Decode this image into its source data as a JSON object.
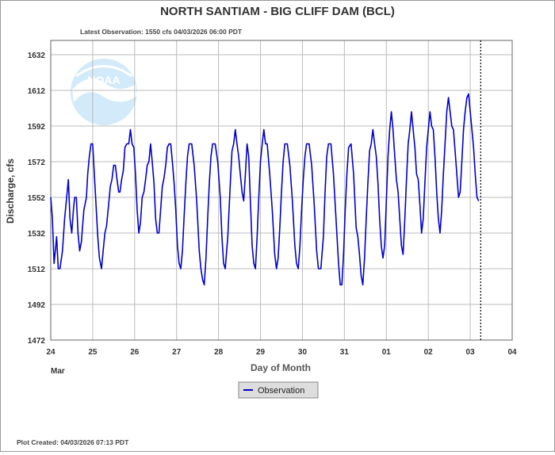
{
  "header": {
    "title": "NORTH SANTIAM - BIG CLIFF DAM  (BCL)",
    "latest_observation": "Latest Observation: 1550 cfs 04/03/2026 06:00 PDT"
  },
  "footer": {
    "plot_created": "Plot Created: 04/03/2026 07:13 PDT"
  },
  "logo": {
    "text": "NOAA"
  },
  "colors": {
    "series": "#0000cc",
    "grid": "#bbbbbb",
    "axis_text": "#333333",
    "legend_bg": "#dddddd"
  },
  "chart_data": {
    "type": "line",
    "title": "NORTH SANTIAM - BIG CLIFF DAM  (BCL)",
    "xlabel": "Day of Month",
    "ylabel": "Discharge, cfs",
    "x_month_label": "Mar",
    "x_tick_labels": [
      "24",
      "25",
      "26",
      "27",
      "28",
      "29",
      "30",
      "31",
      "01",
      "02",
      "03",
      "04"
    ],
    "y_ticks": [
      1472,
      1492,
      1512,
      1532,
      1552,
      1572,
      1592,
      1612,
      1632
    ],
    "xlim_days": [
      0,
      11
    ],
    "ylim": [
      1472,
      1640
    ],
    "grid": true,
    "legend_position": "bottom-center",
    "latest_marker_day": 10.25,
    "series": [
      {
        "name": "Observation",
        "points": [
          [
            0.0,
            1552
          ],
          [
            0.04,
            1540
          ],
          [
            0.08,
            1515
          ],
          [
            0.11,
            1522
          ],
          [
            0.14,
            1530
          ],
          [
            0.18,
            1512
          ],
          [
            0.22,
            1512
          ],
          [
            0.28,
            1522
          ],
          [
            0.33,
            1540
          ],
          [
            0.38,
            1552
          ],
          [
            0.42,
            1562
          ],
          [
            0.46,
            1540
          ],
          [
            0.5,
            1532
          ],
          [
            0.54,
            1545
          ],
          [
            0.57,
            1552
          ],
          [
            0.61,
            1552
          ],
          [
            0.65,
            1532
          ],
          [
            0.69,
            1522
          ],
          [
            0.73,
            1527
          ],
          [
            0.79,
            1545
          ],
          [
            0.85,
            1552
          ],
          [
            0.88,
            1565
          ],
          [
            0.92,
            1575
          ],
          [
            0.96,
            1582
          ],
          [
            1.0,
            1582
          ],
          [
            1.04,
            1565
          ],
          [
            1.08,
            1548
          ],
          [
            1.12,
            1530
          ],
          [
            1.16,
            1518
          ],
          [
            1.21,
            1512
          ],
          [
            1.25,
            1522
          ],
          [
            1.29,
            1532
          ],
          [
            1.33,
            1536
          ],
          [
            1.38,
            1548
          ],
          [
            1.42,
            1558
          ],
          [
            1.46,
            1562
          ],
          [
            1.5,
            1570
          ],
          [
            1.54,
            1570
          ],
          [
            1.58,
            1562
          ],
          [
            1.62,
            1555
          ],
          [
            1.65,
            1555
          ],
          [
            1.69,
            1562
          ],
          [
            1.73,
            1567
          ],
          [
            1.77,
            1580
          ],
          [
            1.81,
            1582
          ],
          [
            1.86,
            1582
          ],
          [
            1.9,
            1590
          ],
          [
            1.94,
            1582
          ],
          [
            1.98,
            1580
          ],
          [
            2.02,
            1565
          ],
          [
            2.06,
            1545
          ],
          [
            2.1,
            1532
          ],
          [
            2.14,
            1538
          ],
          [
            2.18,
            1552
          ],
          [
            2.22,
            1555
          ],
          [
            2.26,
            1562
          ],
          [
            2.3,
            1570
          ],
          [
            2.34,
            1572
          ],
          [
            2.38,
            1582
          ],
          [
            2.42,
            1572
          ],
          [
            2.46,
            1560
          ],
          [
            2.5,
            1540
          ],
          [
            2.54,
            1532
          ],
          [
            2.58,
            1532
          ],
          [
            2.62,
            1545
          ],
          [
            2.66,
            1558
          ],
          [
            2.7,
            1563
          ],
          [
            2.74,
            1570
          ],
          [
            2.78,
            1580
          ],
          [
            2.82,
            1582
          ],
          [
            2.86,
            1582
          ],
          [
            2.9,
            1572
          ],
          [
            2.94,
            1560
          ],
          [
            2.98,
            1545
          ],
          [
            3.02,
            1525
          ],
          [
            3.06,
            1515
          ],
          [
            3.1,
            1512
          ],
          [
            3.14,
            1522
          ],
          [
            3.18,
            1542
          ],
          [
            3.22,
            1560
          ],
          [
            3.26,
            1575
          ],
          [
            3.3,
            1582
          ],
          [
            3.36,
            1582
          ],
          [
            3.42,
            1570
          ],
          [
            3.48,
            1550
          ],
          [
            3.54,
            1522
          ],
          [
            3.58,
            1512
          ],
          [
            3.62,
            1506
          ],
          [
            3.66,
            1503
          ],
          [
            3.7,
            1518
          ],
          [
            3.74,
            1540
          ],
          [
            3.78,
            1560
          ],
          [
            3.82,
            1575
          ],
          [
            3.86,
            1582
          ],
          [
            3.92,
            1582
          ],
          [
            3.98,
            1572
          ],
          [
            4.04,
            1552
          ],
          [
            4.08,
            1530
          ],
          [
            4.12,
            1515
          ],
          [
            4.16,
            1512
          ],
          [
            4.22,
            1530
          ],
          [
            4.28,
            1560
          ],
          [
            4.32,
            1578
          ],
          [
            4.36,
            1582
          ],
          [
            4.4,
            1590
          ],
          [
            4.44,
            1582
          ],
          [
            4.48,
            1575
          ],
          [
            4.52,
            1565
          ],
          [
            4.56,
            1555
          ],
          [
            4.6,
            1550
          ],
          [
            4.64,
            1565
          ],
          [
            4.68,
            1582
          ],
          [
            4.72,
            1575
          ],
          [
            4.76,
            1550
          ],
          [
            4.8,
            1525
          ],
          [
            4.84,
            1515
          ],
          [
            4.88,
            1512
          ],
          [
            4.92,
            1530
          ],
          [
            4.96,
            1552
          ],
          [
            5.0,
            1572
          ],
          [
            5.04,
            1582
          ],
          [
            5.08,
            1590
          ],
          [
            5.12,
            1582
          ],
          [
            5.16,
            1582
          ],
          [
            5.22,
            1565
          ],
          [
            5.28,
            1545
          ],
          [
            5.34,
            1520
          ],
          [
            5.38,
            1512
          ],
          [
            5.42,
            1518
          ],
          [
            5.46,
            1535
          ],
          [
            5.5,
            1555
          ],
          [
            5.54,
            1572
          ],
          [
            5.58,
            1582
          ],
          [
            5.64,
            1582
          ],
          [
            5.7,
            1570
          ],
          [
            5.76,
            1550
          ],
          [
            5.82,
            1525
          ],
          [
            5.86,
            1515
          ],
          [
            5.9,
            1512
          ],
          [
            5.94,
            1525
          ],
          [
            5.98,
            1545
          ],
          [
            6.02,
            1562
          ],
          [
            6.06,
            1575
          ],
          [
            6.1,
            1582
          ],
          [
            6.16,
            1582
          ],
          [
            6.22,
            1570
          ],
          [
            6.28,
            1548
          ],
          [
            6.34,
            1522
          ],
          [
            6.38,
            1512
          ],
          [
            6.44,
            1512
          ],
          [
            6.5,
            1530
          ],
          [
            6.54,
            1555
          ],
          [
            6.58,
            1575
          ],
          [
            6.62,
            1582
          ],
          [
            6.68,
            1582
          ],
          [
            6.74,
            1565
          ],
          [
            6.8,
            1540
          ],
          [
            6.86,
            1515
          ],
          [
            6.9,
            1503
          ],
          [
            6.94,
            1503
          ],
          [
            6.98,
            1520
          ],
          [
            7.02,
            1545
          ],
          [
            7.06,
            1565
          ],
          [
            7.1,
            1580
          ],
          [
            7.16,
            1582
          ],
          [
            7.22,
            1565
          ],
          [
            7.28,
            1535
          ],
          [
            7.32,
            1530
          ],
          [
            7.36,
            1520
          ],
          [
            7.4,
            1508
          ],
          [
            7.44,
            1503
          ],
          [
            7.48,
            1518
          ],
          [
            7.52,
            1540
          ],
          [
            7.56,
            1560
          ],
          [
            7.6,
            1578
          ],
          [
            7.64,
            1582
          ],
          [
            7.68,
            1590
          ],
          [
            7.72,
            1582
          ],
          [
            7.76,
            1575
          ],
          [
            7.8,
            1560
          ],
          [
            7.84,
            1540
          ],
          [
            7.88,
            1525
          ],
          [
            7.92,
            1518
          ],
          [
            7.96,
            1525
          ],
          [
            8.0,
            1550
          ],
          [
            8.04,
            1575
          ],
          [
            8.08,
            1590
          ],
          [
            8.12,
            1600
          ],
          [
            8.16,
            1590
          ],
          [
            8.2,
            1575
          ],
          [
            8.24,
            1562
          ],
          [
            8.28,
            1555
          ],
          [
            8.32,
            1540
          ],
          [
            8.36,
            1525
          ],
          [
            8.4,
            1520
          ],
          [
            8.44,
            1540
          ],
          [
            8.48,
            1562
          ],
          [
            8.52,
            1582
          ],
          [
            8.56,
            1590
          ],
          [
            8.6,
            1600
          ],
          [
            8.64,
            1590
          ],
          [
            8.68,
            1580
          ],
          [
            8.72,
            1565
          ],
          [
            8.76,
            1562
          ],
          [
            8.8,
            1548
          ],
          [
            8.84,
            1532
          ],
          [
            8.88,
            1540
          ],
          [
            8.92,
            1560
          ],
          [
            8.96,
            1580
          ],
          [
            9.0,
            1590
          ],
          [
            9.04,
            1600
          ],
          [
            9.08,
            1592
          ],
          [
            9.12,
            1590
          ],
          [
            9.16,
            1575
          ],
          [
            9.2,
            1555
          ],
          [
            9.24,
            1540
          ],
          [
            9.28,
            1532
          ],
          [
            9.32,
            1545
          ],
          [
            9.36,
            1565
          ],
          [
            9.4,
            1582
          ],
          [
            9.44,
            1600
          ],
          [
            9.48,
            1608
          ],
          [
            9.52,
            1600
          ],
          [
            9.56,
            1592
          ],
          [
            9.6,
            1590
          ],
          [
            9.64,
            1578
          ],
          [
            9.68,
            1565
          ],
          [
            9.72,
            1552
          ],
          [
            9.76,
            1555
          ],
          [
            9.8,
            1572
          ],
          [
            9.84,
            1590
          ],
          [
            9.88,
            1600
          ],
          [
            9.92,
            1608
          ],
          [
            9.96,
            1610
          ],
          [
            10.0,
            1600
          ],
          [
            10.04,
            1590
          ],
          [
            10.08,
            1580
          ],
          [
            10.12,
            1565
          ],
          [
            10.16,
            1552
          ],
          [
            10.2,
            1550
          ]
        ]
      }
    ]
  }
}
